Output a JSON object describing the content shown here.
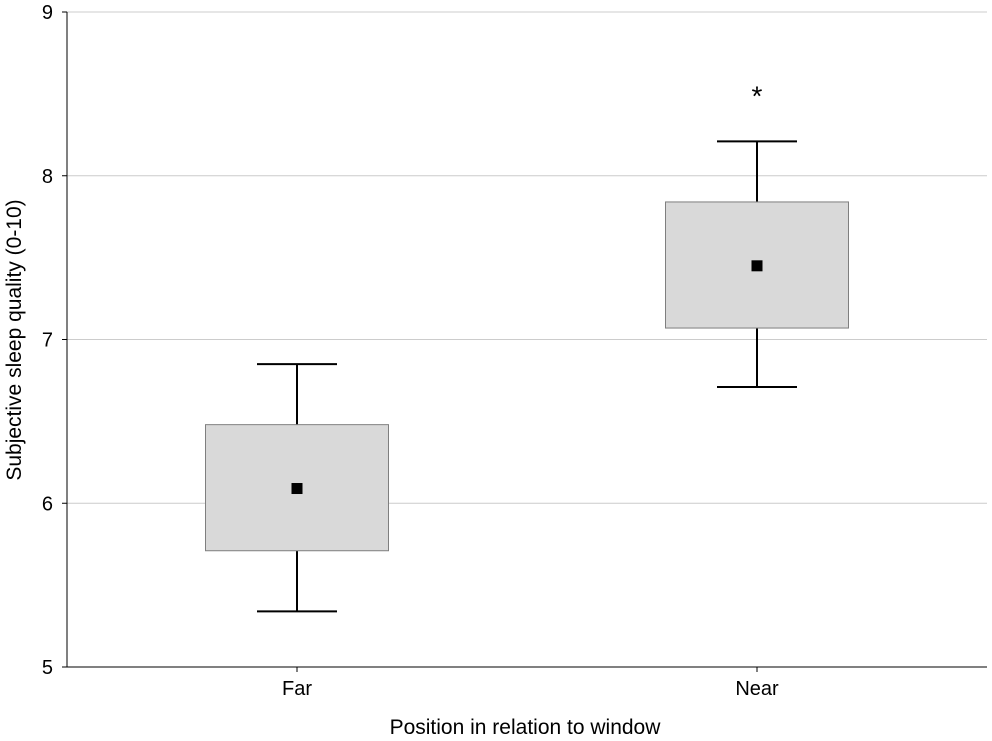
{
  "chart_data": {
    "type": "box",
    "title": "",
    "xlabel": "Position in relation to window",
    "ylabel": "Subjective sleep quality (0-10)",
    "ylim": [
      5,
      9
    ],
    "yticks": [
      "5",
      "6",
      "7",
      "8",
      "9"
    ],
    "grid": "horizontal",
    "categories": [
      "Far",
      "Near"
    ],
    "series": [
      {
        "category": "Far",
        "whisker_low": 5.34,
        "box_low": 5.71,
        "mean": 6.09,
        "box_high": 6.48,
        "whisker_high": 6.85,
        "annotation": ""
      },
      {
        "category": "Near",
        "whisker_low": 6.71,
        "box_low": 7.07,
        "mean": 7.45,
        "box_high": 7.84,
        "whisker_high": 8.21,
        "annotation": "*"
      }
    ],
    "colors": {
      "box_fill": "#d9d9d9",
      "box_stroke": "#7f7f7f",
      "whisker": "#000000",
      "mean_marker": "#000000",
      "grid": "#cccccc"
    }
  }
}
